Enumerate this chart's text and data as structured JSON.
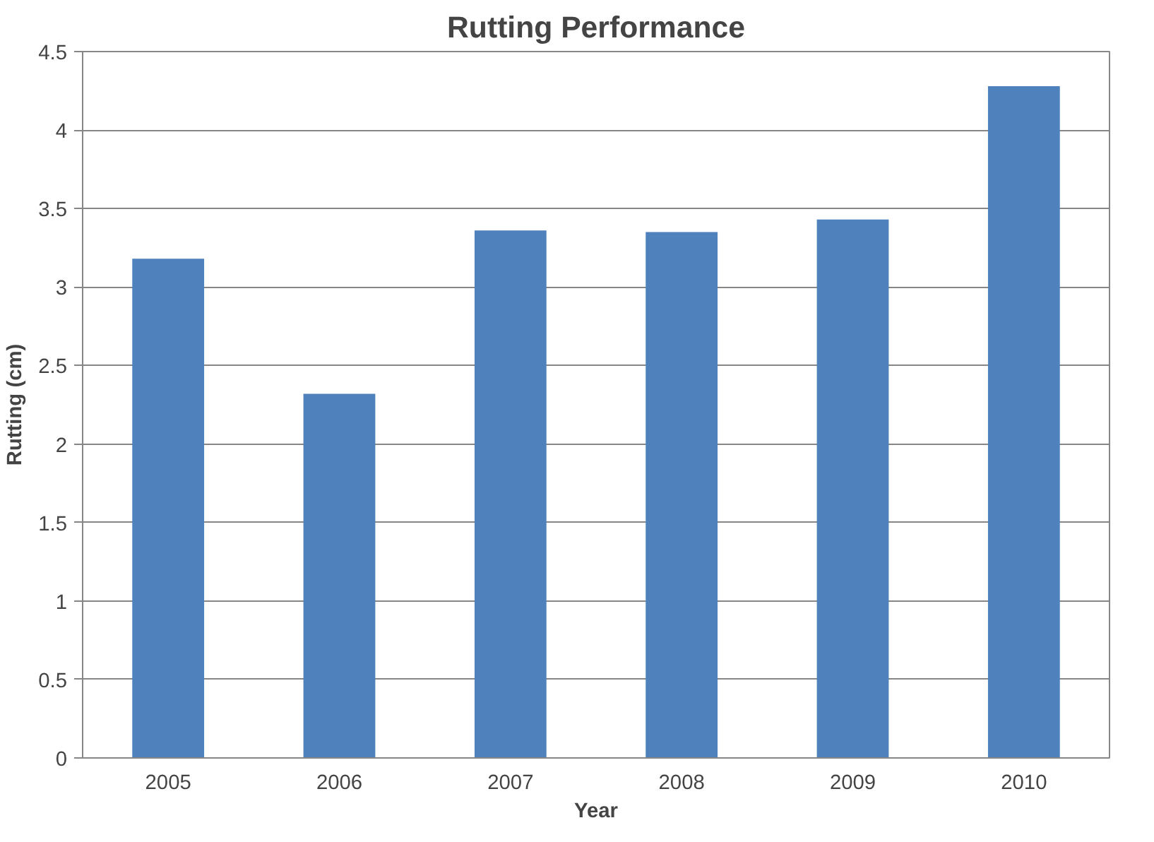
{
  "chart_data": {
    "type": "bar",
    "title": "Rutting Performance",
    "xlabel": "Year",
    "ylabel": "Rutting (cm)",
    "categories": [
      "2005",
      "2006",
      "2007",
      "2008",
      "2009",
      "2010"
    ],
    "values": [
      3.18,
      2.32,
      3.36,
      3.35,
      3.43,
      4.28
    ],
    "color": "#4f81bd",
    "ylim": [
      0,
      4.5
    ],
    "yticks": [
      0,
      {
        "value": 0.5,
        "label": "0.5"
      },
      1,
      {
        "value": 1.5,
        "label": "1.5"
      },
      2,
      {
        "value": 2.5,
        "label": "2.5"
      },
      3,
      {
        "value": 3.5,
        "label": "3.5"
      },
      4,
      {
        "value": 4.5,
        "label": "4.5"
      }
    ],
    "grid": "y"
  }
}
